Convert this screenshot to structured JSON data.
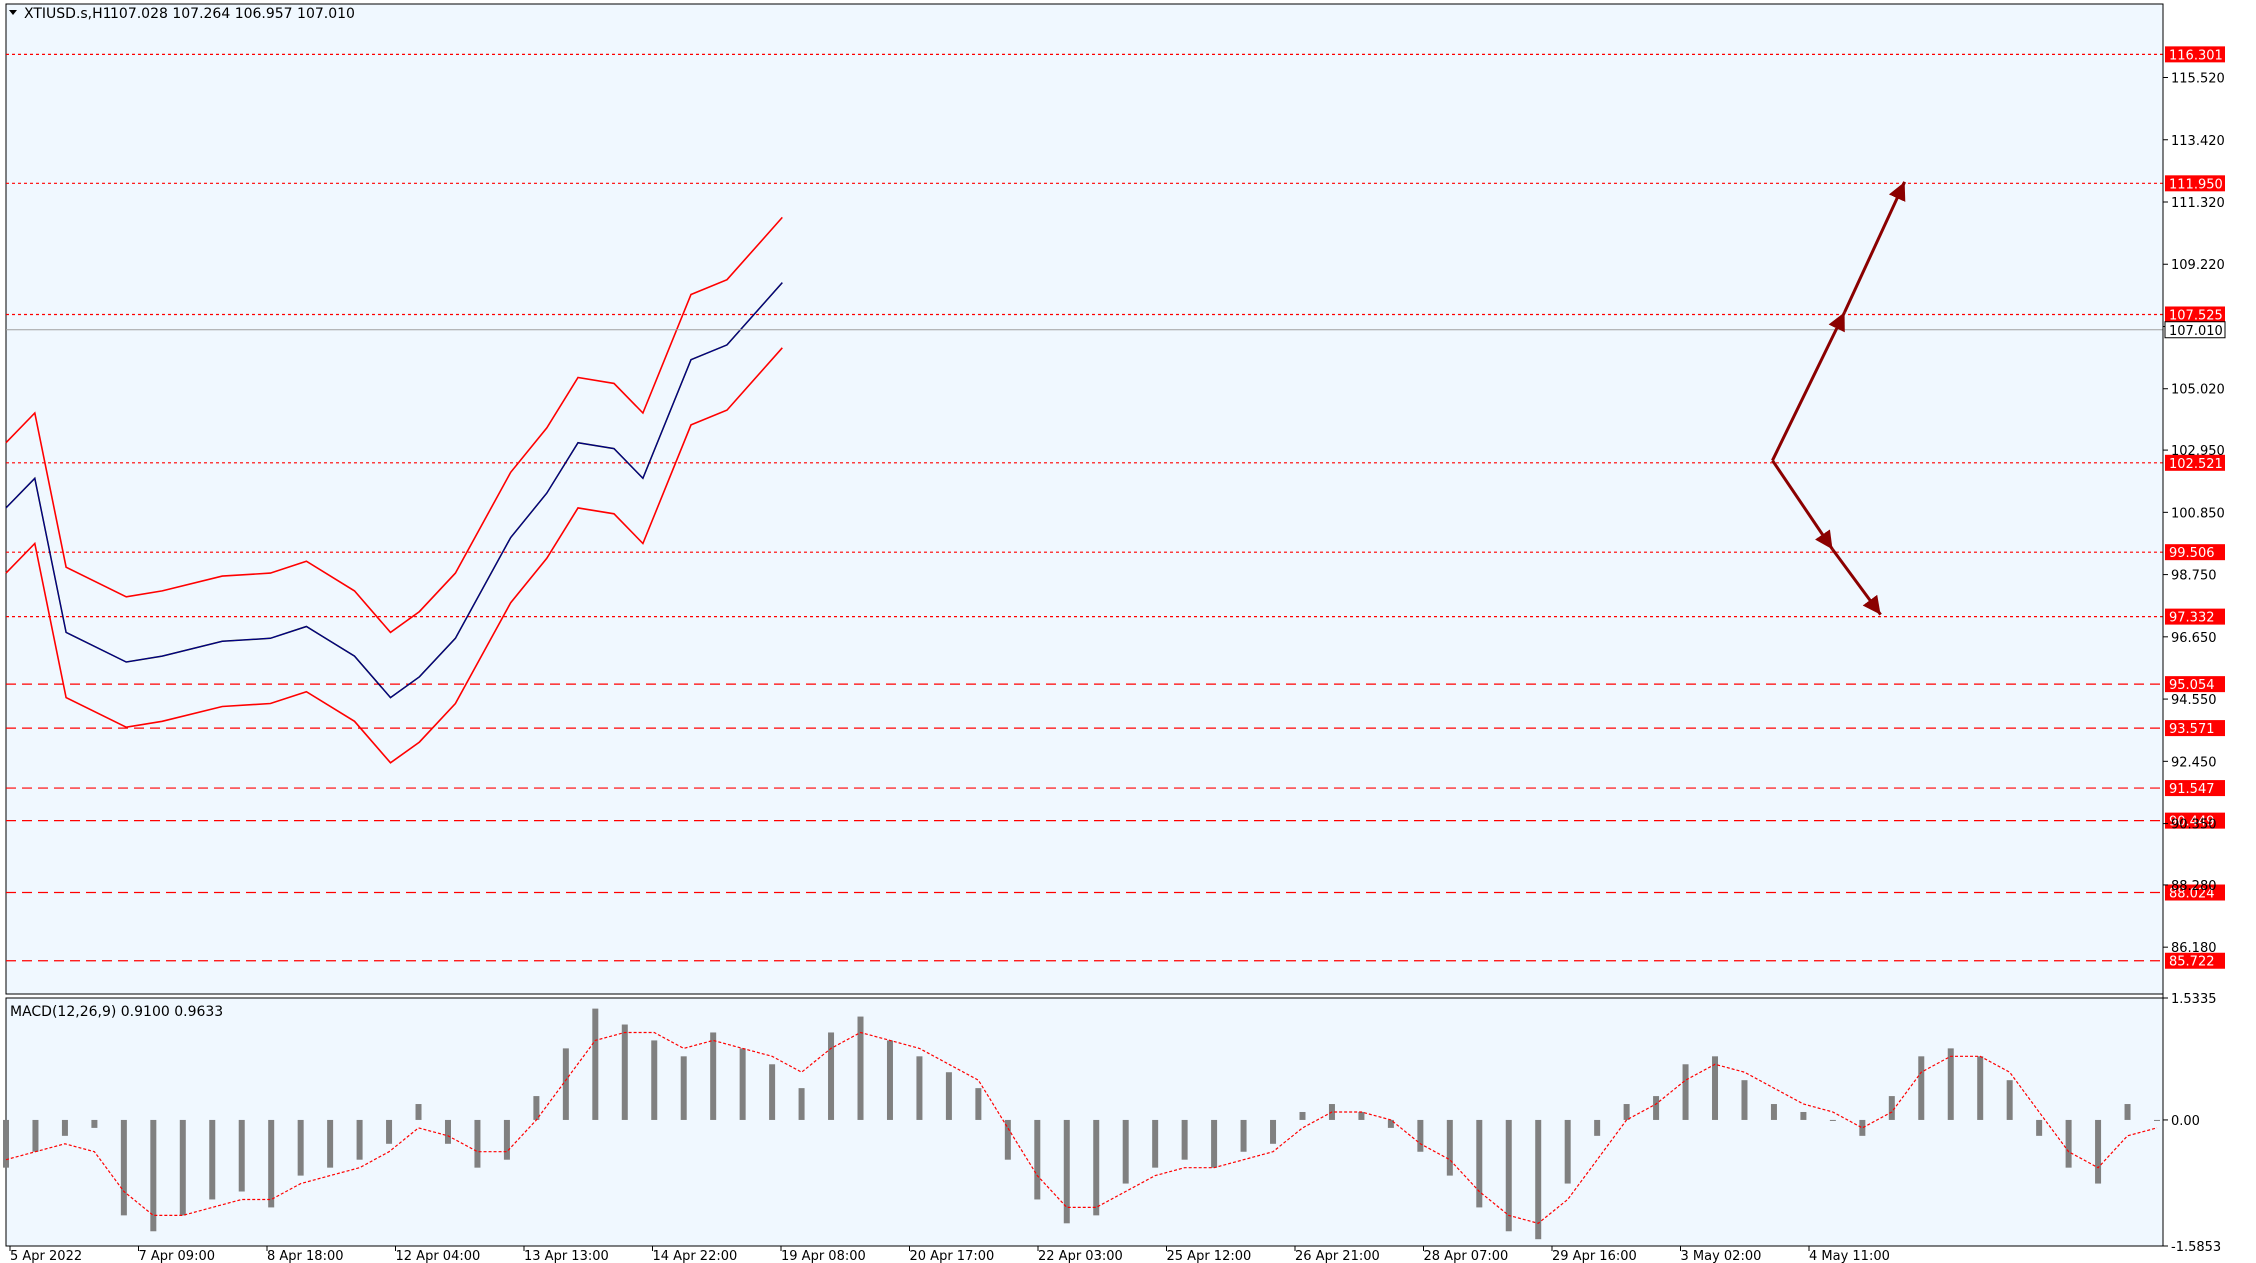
{
  "window": {
    "title": "XTIUSD.s,H1",
    "ohlc": "107.028 107.264 106.957 107.010"
  },
  "indicator_label": "MACD(12,26,9) 0.9100 0.9633",
  "colors": {
    "background": "#F0F8FF",
    "axis": "#000000",
    "bb": "#FF0000",
    "ma": "#0000FF",
    "level": "#FF0000",
    "arrow": "#8B0000",
    "hist": "#808080",
    "signal": "#FF0000"
  },
  "chart_data": [
    {
      "type": "candlestick",
      "symbol": "XTIUSD.s",
      "timeframe": "H1",
      "ylim": [
        84.6,
        118.0
      ],
      "y_ticks": [
        "115.520",
        "113.420",
        "111.320",
        "109.220",
        "107.120",
        "105.020",
        "102.950",
        "100.850",
        "98.750",
        "96.650",
        "94.550",
        "92.450",
        "90.350",
        "88.280",
        "86.180"
      ],
      "x_ticks": [
        "5 Apr 2022",
        "7 Apr 09:00",
        "8 Apr 18:00",
        "12 Apr 04:00",
        "13 Apr 13:00",
        "14 Apr 22:00",
        "19 Apr 08:00",
        "20 Apr 17:00",
        "22 Apr 03:00",
        "25 Apr 12:00",
        "26 Apr 21:00",
        "28 Apr 07:00",
        "29 Apr 16:00",
        "3 May 02:00",
        "4 May 11:00"
      ],
      "current_price": "107.010",
      "levels": [
        {
          "value": 116.301,
          "label": "116.301",
          "style": "dotted"
        },
        {
          "value": 111.95,
          "label": "111.950",
          "style": "dotted"
        },
        {
          "value": 107.525,
          "label": "107.525",
          "style": "dotted"
        },
        {
          "value": 102.521,
          "label": "102.521",
          "style": "dotted"
        },
        {
          "value": 99.506,
          "label": "99.506",
          "style": "dotted"
        },
        {
          "value": 97.332,
          "label": "97.332",
          "style": "dotted"
        },
        {
          "value": 95.054,
          "label": "95.054",
          "style": "dashed"
        },
        {
          "value": 93.571,
          "label": "93.571",
          "style": "dashed"
        },
        {
          "value": 91.547,
          "label": "91.547",
          "style": "dashed"
        },
        {
          "value": 90.449,
          "label": "90.449",
          "style": "dashed"
        },
        {
          "value": 88.024,
          "label": "88.024",
          "style": "dashed"
        },
        {
          "value": 85.722,
          "label": "85.722",
          "style": "dashed"
        }
      ],
      "series": [
        {
          "x": [
            0,
            12,
            25,
            50,
            65,
            90,
            110,
            125,
            145,
            160,
            172,
            187,
            210,
            225,
            238,
            253,
            265,
            285,
            300,
            323
          ],
          "y": [
            101.0,
            102.0,
            96.8,
            95.8,
            96.0,
            96.5,
            96.6,
            97.0,
            96.0,
            94.6,
            95.3,
            96.6,
            100.0,
            101.5,
            103.2,
            103.0,
            102.0,
            106.0,
            106.5,
            108.6
          ]
        },
        {
          "x": [
            323,
            340,
            355,
            370,
            390,
            405,
            425,
            435,
            445,
            460,
            470,
            485,
            500,
            513,
            526,
            540,
            555,
            562,
            575,
            590,
            600,
            610,
            628,
            640,
            652,
            665,
            680,
            695,
            707,
            715,
            730
          ]
        },
        {
          "x": [
            730,
            733,
            748,
            765,
            775,
            790,
            805,
            820,
            835,
            845,
            860,
            880,
            890,
            895
          ]
        }
      ],
      "annotations": [
        {
          "type": "arrow",
          "from_x": 735,
          "from_y": 102.6,
          "to_x": 765,
          "to_y": 107.6
        },
        {
          "type": "arrow",
          "from_x": 765,
          "from_y": 107.6,
          "to_x": 790,
          "to_y": 112.0
        },
        {
          "type": "arrow",
          "from_x": 735,
          "from_y": 102.6,
          "to_x": 760,
          "to_y": 99.6
        },
        {
          "type": "arrow",
          "from_x": 760,
          "from_y": 99.6,
          "to_x": 780,
          "to_y": 97.4
        }
      ]
    },
    {
      "type": "histogram",
      "title": "MACD(12,26,9)",
      "ylim": [
        -1.5853,
        1.5335
      ],
      "y_ticks": [
        "1.5335",
        "0.00",
        "-1.5853"
      ],
      "x": [
        0,
        10,
        20,
        30,
        40,
        50,
        60,
        70,
        80,
        90,
        100,
        110,
        120,
        130,
        140,
        150,
        160,
        170,
        180,
        190,
        200,
        210,
        220,
        230,
        240,
        250,
        260,
        270,
        280,
        290,
        300,
        310,
        320,
        330,
        340,
        350,
        360,
        370,
        380,
        390,
        400,
        410,
        420,
        430,
        440,
        450,
        460,
        470,
        480,
        490,
        500,
        510,
        520,
        530,
        540,
        550,
        560,
        570,
        580,
        590,
        600,
        610,
        620,
        630,
        640,
        650,
        660,
        670,
        680,
        690,
        700,
        710,
        720,
        730
      ],
      "y": [
        -0.6,
        -0.4,
        -0.2,
        -0.1,
        -1.2,
        -1.4,
        -1.2,
        -1.0,
        -0.9,
        -1.1,
        -0.7,
        -0.6,
        -0.5,
        -0.3,
        0.2,
        -0.3,
        -0.6,
        -0.5,
        0.3,
        0.9,
        1.4,
        1.2,
        1.0,
        0.8,
        1.1,
        0.9,
        0.7,
        0.4,
        1.1,
        1.3,
        1.0,
        0.8,
        0.6,
        0.4,
        -0.5,
        -1.0,
        -1.3,
        -1.2,
        -0.8,
        -0.6,
        -0.5,
        -0.6,
        -0.4,
        -0.3,
        0.1,
        0.2,
        0.1,
        -0.1,
        -0.4,
        -0.7,
        -1.1,
        -1.4,
        -1.5,
        -0.8,
        -0.2,
        0.2,
        0.3,
        0.7,
        0.8,
        0.5,
        0.2,
        0.1,
        0.0,
        -0.2,
        0.3,
        0.8,
        0.9,
        0.8,
        0.5,
        -0.2,
        -0.6,
        -0.8,
        0.2,
        0.0
      ],
      "signal": [
        -0.5,
        -0.4,
        -0.3,
        -0.4,
        -0.9,
        -1.2,
        -1.2,
        -1.1,
        -1.0,
        -1.0,
        -0.8,
        -0.7,
        -0.6,
        -0.4,
        -0.1,
        -0.2,
        -0.4,
        -0.4,
        0.0,
        0.5,
        1.0,
        1.1,
        1.1,
        0.9,
        1.0,
        0.9,
        0.8,
        0.6,
        0.9,
        1.1,
        1.0,
        0.9,
        0.7,
        0.5,
        -0.1,
        -0.7,
        -1.1,
        -1.1,
        -0.9,
        -0.7,
        -0.6,
        -0.6,
        -0.5,
        -0.4,
        -0.1,
        0.1,
        0.1,
        0.0,
        -0.3,
        -0.5,
        -0.9,
        -1.2,
        -1.3,
        -1.0,
        -0.5,
        0.0,
        0.2,
        0.5,
        0.7,
        0.6,
        0.4,
        0.2,
        0.1,
        -0.1,
        0.1,
        0.6,
        0.8,
        0.8,
        0.6,
        0.1,
        -0.4,
        -0.6,
        -0.2,
        -0.1
      ]
    }
  ]
}
